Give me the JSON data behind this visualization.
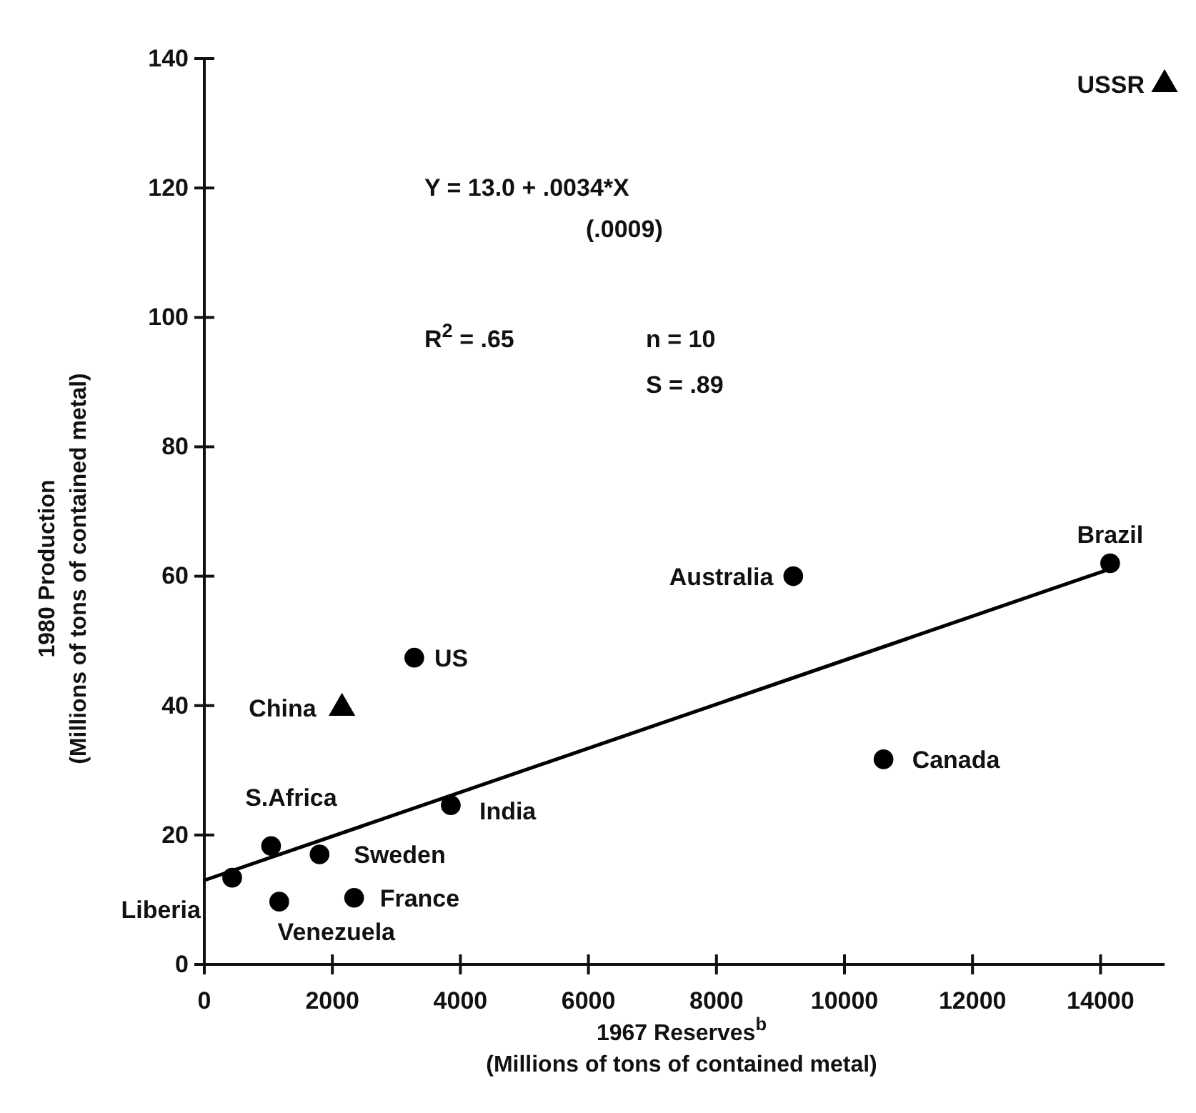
{
  "chart_data": {
    "type": "scatter",
    "xlabel": "1967 Reserves$^{b}$\n(Millions of tons of contained metal)",
    "ylabel": "1980 Production\n(Millions of tons of contained metal)",
    "xlim": [
      0,
      15000
    ],
    "xticks": [
      0,
      2000,
      4000,
      6000,
      8000,
      10000,
      12000,
      14000
    ],
    "ylim": [
      0,
      140
    ],
    "yticks": [
      0,
      20,
      40,
      60,
      80,
      100,
      120,
      140
    ],
    "grid": false,
    "series": [
      {
        "marker": "circle",
        "color": "#000000",
        "x": [
          435,
          1043,
          1170,
          1800,
          2340,
          3280,
          3850,
          9200,
          10610,
          14150
        ],
        "values": [
          13.4,
          18.3,
          9.7,
          17.0,
          10.3,
          47.4,
          24.6,
          60,
          31.7,
          62
        ]
      },
      {
        "marker": "triangle",
        "color": "#000000",
        "x": [
          2150,
          15000
        ],
        "values": [
          39.6,
          136
        ]
      },
      {
        "type": "line",
        "marker": "none",
        "color": "#000000",
        "x": [
          0,
          14200
        ],
        "values": [
          13.0,
          61.3
        ]
      }
    ],
    "annotations": [
      "Y = 13.0 + .0034*X",
      "(.0009)",
      "R$^{2}$ = .65",
      "n = 10",
      "S = .89",
      {
        "text": "Liberia",
        "x": 435,
        "y": 13.4
      },
      {
        "text": "S.Africa",
        "x": 1043,
        "y": 18.3
      },
      {
        "text": "Venezuela",
        "x": 1170,
        "y": 9.7
      },
      {
        "text": "Sweden",
        "x": 1800,
        "y": 17.0
      },
      {
        "text": "France",
        "x": 2340,
        "y": 10.3
      },
      {
        "text": "China",
        "x": 2150,
        "y": 39.6
      },
      {
        "text": "US",
        "x": 3280,
        "y": 47.4
      },
      {
        "text": "India",
        "x": 3850,
        "y": 24.6
      },
      {
        "text": "Australia",
        "x": 9200,
        "y": 60
      },
      {
        "text": "Canada",
        "x": 10610,
        "y": 31.7
      },
      {
        "text": "Brazil",
        "x": 14150,
        "y": 62
      },
      {
        "text": "USSR",
        "x": 15000,
        "y": 136
      }
    ]
  }
}
